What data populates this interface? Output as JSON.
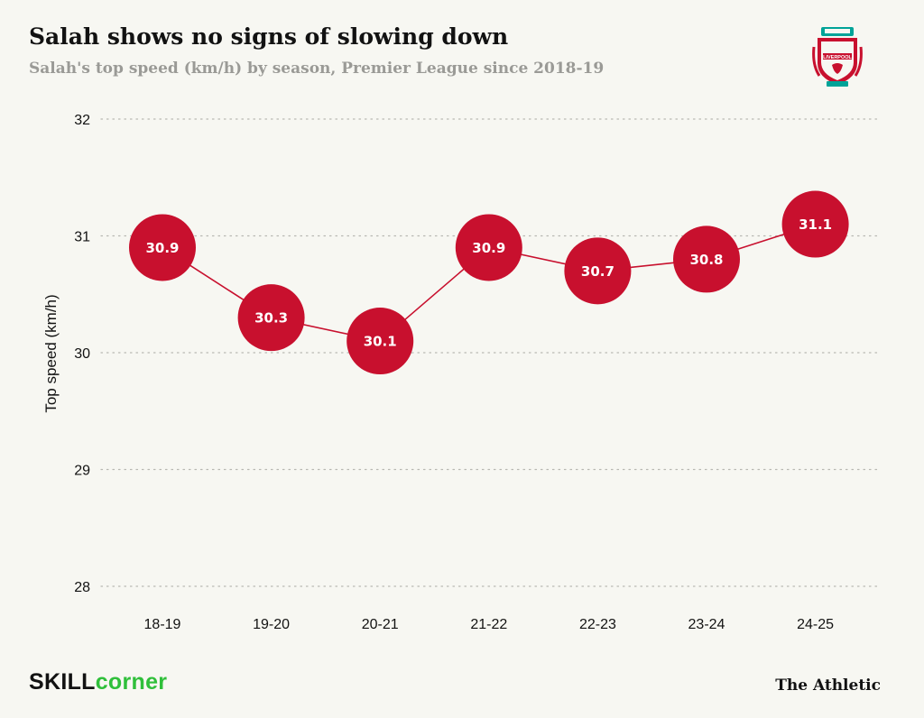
{
  "header": {
    "title": "Salah shows no signs of slowing down",
    "subtitle": "Salah's top speed (km/h) by season, Premier League since 2018-19"
  },
  "crest": {
    "icon": "liverpool-crest-icon",
    "text": "LIVERPOOL"
  },
  "colors": {
    "marker": "#c8102e",
    "line": "#c8102e",
    "grid": "#b8b8b2",
    "crest_red": "#c8102e",
    "crest_green": "#00a398"
  },
  "chart_data": {
    "type": "line",
    "categories": [
      "18-19",
      "19-20",
      "20-21",
      "21-22",
      "22-23",
      "23-24",
      "24-25"
    ],
    "values": [
      30.9,
      30.3,
      30.1,
      30.9,
      30.7,
      30.8,
      31.1
    ],
    "data_labels": [
      "30.9",
      "30.3",
      "30.1",
      "30.9",
      "30.7",
      "30.8",
      "31.1"
    ],
    "ylabel": "Top speed (km/h)",
    "xlabel": "",
    "ylim": [
      28,
      32
    ],
    "yticks": [
      28,
      29,
      30,
      31,
      32
    ],
    "grid": "horizontal dotted"
  },
  "footer": {
    "source_prefix": "SKILL",
    "source_suffix": "corner",
    "publisher": "The Athletic"
  }
}
